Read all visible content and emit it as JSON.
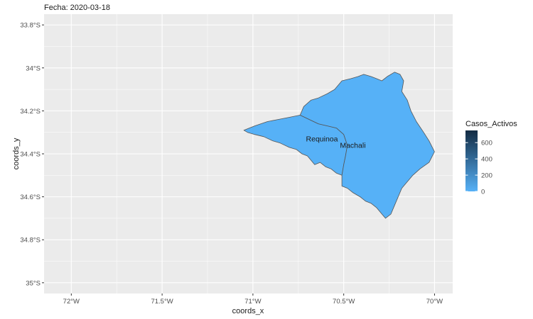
{
  "subtitle": "Fecha: 2020-03-18",
  "chart_data": {
    "type": "map",
    "xlabel": "coords_x",
    "ylabel": "coords_y",
    "x_ticks": [
      {
        "value": -72.0,
        "label": "72°W"
      },
      {
        "value": -71.5,
        "label": "71.5°W"
      },
      {
        "value": -71.0,
        "label": "71°W"
      },
      {
        "value": -70.5,
        "label": "70.5°W"
      },
      {
        "value": -70.0,
        "label": "70°W"
      }
    ],
    "y_ticks": [
      {
        "value": -33.8,
        "label": "33.8°S"
      },
      {
        "value": -34.0,
        "label": "34°S"
      },
      {
        "value": -34.2,
        "label": "34.2°S"
      },
      {
        "value": -34.4,
        "label": "34.4°S"
      },
      {
        "value": -34.6,
        "label": "34.6°S"
      },
      {
        "value": -34.8,
        "label": "34.8°S"
      },
      {
        "value": -35.0,
        "label": "35°S"
      }
    ],
    "xlim": [
      -72.15,
      -69.9
    ],
    "ylim": [
      -35.05,
      -33.75
    ],
    "grid": true,
    "legend": {
      "title": "Casos_Activos",
      "position": "right",
      "breaks": [
        0,
        200,
        400,
        600
      ],
      "labels": [
        "0",
        "200",
        "400",
        "600"
      ],
      "range": [
        0,
        750
      ],
      "color_low": "#56B1F7",
      "color_high": "#132B43"
    },
    "regions": [
      {
        "name": "Requinoa",
        "value": 0,
        "label_pos": [
          -70.62,
          -34.33
        ],
        "coords": [
          [
            -71.05,
            -34.29
          ],
          [
            -70.99,
            -34.27
          ],
          [
            -70.92,
            -34.25
          ],
          [
            -70.86,
            -34.24
          ],
          [
            -70.8,
            -34.23
          ],
          [
            -70.74,
            -34.22
          ],
          [
            -70.69,
            -34.24
          ],
          [
            -70.64,
            -34.26
          ],
          [
            -70.59,
            -34.27
          ],
          [
            -70.54,
            -34.28
          ],
          [
            -70.5,
            -34.31
          ],
          [
            -70.48,
            -34.36
          ],
          [
            -70.49,
            -34.41
          ],
          [
            -70.5,
            -34.45
          ],
          [
            -70.51,
            -34.5
          ],
          [
            -70.54,
            -34.49
          ],
          [
            -70.57,
            -34.47
          ],
          [
            -70.6,
            -34.46
          ],
          [
            -70.63,
            -34.44
          ],
          [
            -70.66,
            -34.45
          ],
          [
            -70.68,
            -34.43
          ],
          [
            -70.7,
            -34.41
          ],
          [
            -70.73,
            -34.4
          ],
          [
            -70.76,
            -34.38
          ],
          [
            -70.8,
            -34.37
          ],
          [
            -70.85,
            -34.35
          ],
          [
            -70.89,
            -34.34
          ],
          [
            -70.94,
            -34.32
          ],
          [
            -70.99,
            -34.31
          ],
          [
            -71.03,
            -34.3
          ]
        ]
      },
      {
        "name": "Machali",
        "value": 0,
        "label_pos": [
          -70.45,
          -34.36
        ],
        "coords": [
          [
            -70.74,
            -34.22
          ],
          [
            -70.72,
            -34.18
          ],
          [
            -70.68,
            -34.15
          ],
          [
            -70.64,
            -34.14
          ],
          [
            -70.59,
            -34.12
          ],
          [
            -70.55,
            -34.1
          ],
          [
            -70.51,
            -34.06
          ],
          [
            -70.46,
            -34.05
          ],
          [
            -70.42,
            -34.04
          ],
          [
            -70.39,
            -34.03
          ],
          [
            -70.35,
            -34.04
          ],
          [
            -70.32,
            -34.05
          ],
          [
            -70.29,
            -34.06
          ],
          [
            -70.26,
            -34.04
          ],
          [
            -70.22,
            -34.02
          ],
          [
            -70.19,
            -34.03
          ],
          [
            -70.17,
            -34.06
          ],
          [
            -70.18,
            -34.11
          ],
          [
            -70.15,
            -34.15
          ],
          [
            -70.13,
            -34.2
          ],
          [
            -70.1,
            -34.25
          ],
          [
            -70.06,
            -34.3
          ],
          [
            -70.03,
            -34.34
          ],
          [
            -70.0,
            -34.39
          ],
          [
            -70.03,
            -34.44
          ],
          [
            -70.08,
            -34.47
          ],
          [
            -70.12,
            -34.5
          ],
          [
            -70.15,
            -34.53
          ],
          [
            -70.18,
            -34.56
          ],
          [
            -70.2,
            -34.6
          ],
          [
            -70.22,
            -34.64
          ],
          [
            -70.24,
            -34.68
          ],
          [
            -70.27,
            -34.7
          ],
          [
            -70.29,
            -34.68
          ],
          [
            -70.32,
            -34.65
          ],
          [
            -70.35,
            -34.63
          ],
          [
            -70.38,
            -34.62
          ],
          [
            -70.41,
            -34.6
          ],
          [
            -70.45,
            -34.58
          ],
          [
            -70.48,
            -34.56
          ],
          [
            -70.51,
            -34.55
          ],
          [
            -70.51,
            -34.5
          ],
          [
            -70.5,
            -34.45
          ],
          [
            -70.49,
            -34.41
          ],
          [
            -70.48,
            -34.36
          ],
          [
            -70.5,
            -34.31
          ],
          [
            -70.54,
            -34.28
          ],
          [
            -70.59,
            -34.27
          ],
          [
            -70.64,
            -34.26
          ],
          [
            -70.69,
            -34.24
          ]
        ]
      }
    ]
  }
}
